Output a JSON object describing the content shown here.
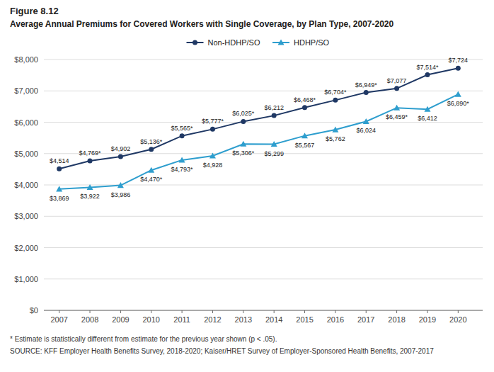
{
  "chart_data": {
    "type": "line",
    "title": "Figure 8.12",
    "subtitle": "Average Annual Premiums for Covered Workers with Single Coverage, by Plan Type, 2007-2020",
    "x": [
      2007,
      2008,
      2009,
      2010,
      2011,
      2012,
      2013,
      2014,
      2015,
      2016,
      2017,
      2018,
      2019,
      2020
    ],
    "xlim": [
      2006.5,
      2020.8
    ],
    "xticks": [
      2007,
      2008,
      2009,
      2010,
      2011,
      2012,
      2013,
      2014,
      2015,
      2016,
      2017,
      2018,
      2019,
      2020
    ],
    "ylim": [
      0,
      8000
    ],
    "yticks": [
      {
        "value": 0,
        "label": "$0"
      },
      {
        "value": 1000,
        "label": "$1,000"
      },
      {
        "value": 2000,
        "label": "$2,000"
      },
      {
        "value": 3000,
        "label": "$3,000"
      },
      {
        "value": 4000,
        "label": "$4,000"
      },
      {
        "value": 5000,
        "label": "$5,000"
      },
      {
        "value": 6000,
        "label": "$6,000"
      },
      {
        "value": 7000,
        "label": "$7,000"
      },
      {
        "value": 8000,
        "label": "$8,000"
      }
    ],
    "grid": true,
    "legend": "top",
    "data_labels": true,
    "series": [
      {
        "name": "Non-HDHP/SO",
        "color": "#1f3864",
        "marker": "circle",
        "line_style": "solid",
        "values": [
          4514,
          4769,
          4902,
          5136,
          5565,
          5777,
          6025,
          6212,
          6468,
          6704,
          6949,
          7077,
          7514,
          7724
        ],
        "value_labels": [
          "$4,514",
          "$4,769*",
          "$4,902",
          "$5,136*",
          "$5,565*",
          "$5,777*",
          "$6,025*",
          "$6,212",
          "$6,468*",
          "$6,704*",
          "$6,949*",
          "$7,077",
          "$7,514*",
          "$7,724"
        ]
      },
      {
        "name": "HDHP/SO",
        "color": "#2e9ece",
        "marker": "triangle",
        "line_style": "solid",
        "values": [
          3869,
          3922,
          3986,
          4470,
          4793,
          4928,
          5306,
          5299,
          5567,
          5762,
          6024,
          6459,
          6412,
          6890
        ],
        "value_labels": [
          "$3,869",
          "$3,922",
          "$3,986",
          "$4,470*",
          "$4,793*",
          "$4,928",
          "$5,306*",
          "$5,299",
          "$5,567",
          "$5,762",
          "$6,024",
          "$6,459*",
          "$6,412",
          "$6,890*"
        ]
      }
    ],
    "annotations": [
      "* Estimate is statistically different from estimate for the previous year shown (p < .05).",
      "SOURCE: KFF Employer Health Benefits Survey, 2018-2020; Kaiser/HRET Survey of Employer-Sponsored Health Benefits, 2007-2017"
    ]
  }
}
